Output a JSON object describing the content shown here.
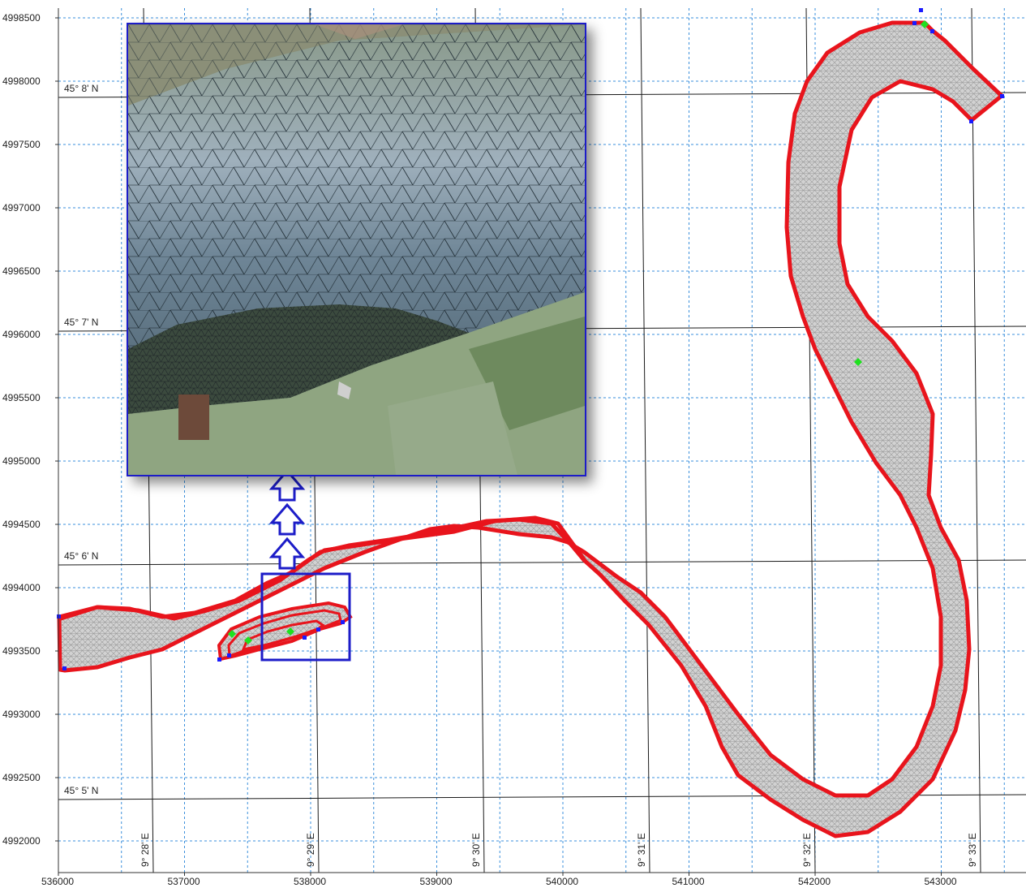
{
  "map": {
    "x_axis_ticks": [
      "536000",
      "537000",
      "538000",
      "539000",
      "540000",
      "541000",
      "542000",
      "543000"
    ],
    "y_axis_ticks": [
      "4998500",
      "4998000",
      "4997500",
      "4997000",
      "4996500",
      "4996000",
      "4995500",
      "4995000",
      "4994500",
      "4994000",
      "4993500",
      "4993000",
      "4992500",
      "4992000"
    ],
    "latitude_labels": [
      "45° 8' N",
      "45° 7' N",
      "45° 6' N",
      "45° 5' N"
    ],
    "longitude_labels": [
      "9° 28' E",
      "9° 29' E",
      "9° 30' E",
      "9° 31' E",
      "9° 32' E",
      "9° 33' E"
    ],
    "colors": {
      "boundary": "#e8141c",
      "mesh_fill": "#cfcfcf",
      "node": "#1a1aff",
      "centroid": "#1fe01f",
      "utm_grid": "#3a8fdc",
      "geo_grid": "#1a1a1a",
      "highlight_box": "#1c1cc8"
    }
  },
  "inset": {
    "description_icon": "mesh-photo-inset",
    "arrow_icon": "up-arrow-icon"
  }
}
